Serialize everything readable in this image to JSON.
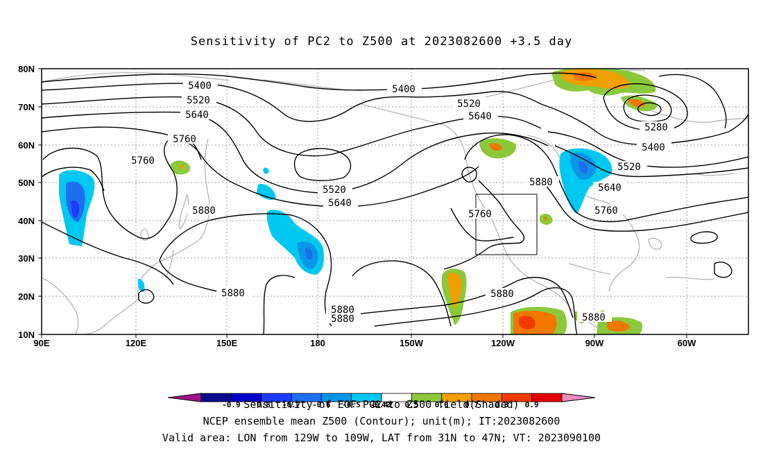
{
  "title": "Sensitivity of PC2 to Z500 at 2023082600 +3.5 day",
  "lat_ticks": [
    "80N",
    "70N",
    "60N",
    "50N",
    "40N",
    "30N",
    "20N",
    "10N"
  ],
  "lon_ticks": [
    "90E",
    "120E",
    "150E",
    "180",
    "150W",
    "120W",
    "90W",
    "60W"
  ],
  "contour_labels": [
    {
      "text": "5400"
    },
    {
      "text": "5520"
    },
    {
      "text": "5640"
    },
    {
      "text": "5760"
    },
    {
      "text": "5760"
    },
    {
      "text": "5880"
    },
    {
      "text": "5400"
    },
    {
      "text": "5520"
    },
    {
      "text": "5640"
    },
    {
      "text": "5520"
    },
    {
      "text": "5640"
    },
    {
      "text": "5280"
    },
    {
      "text": "5400"
    },
    {
      "text": "5520"
    },
    {
      "text": "5640"
    },
    {
      "text": "5760"
    },
    {
      "text": "5880"
    },
    {
      "text": "5760"
    },
    {
      "text": "5880"
    },
    {
      "text": "5880"
    },
    {
      "text": "5880"
    },
    {
      "text": "5880"
    },
    {
      "text": "5880"
    }
  ],
  "colorbar": {
    "labels": [
      "-0.9",
      "-0.8",
      "-0.7",
      "-0.6",
      "-0.5",
      "-0.42",
      "0.42",
      "0.5",
      "0.6",
      "0.7",
      "0.8",
      "0.9"
    ],
    "colors": [
      "#0a0a8c",
      "#0000c8",
      "#1e3cff",
      "#1e6ef0",
      "#0a96e6",
      "#00c8f0",
      "#ffffff",
      "#8cc83c",
      "#f0a000",
      "#f07800",
      "#f03c00",
      "#e60000"
    ],
    "left_end_color": "#a0148c",
    "right_end_color": "#f08cbe"
  },
  "captions": {
    "line1": "Sensitivity of EOF PC2 to Z500 field(Shaded)",
    "line2": "NCEP ensemble mean Z500 (Contour); unit(m); IT:2023082600",
    "line3": "Valid area: LON from 129W to 109W, LAT from 31N to 47N; VT: 2023090100"
  }
}
